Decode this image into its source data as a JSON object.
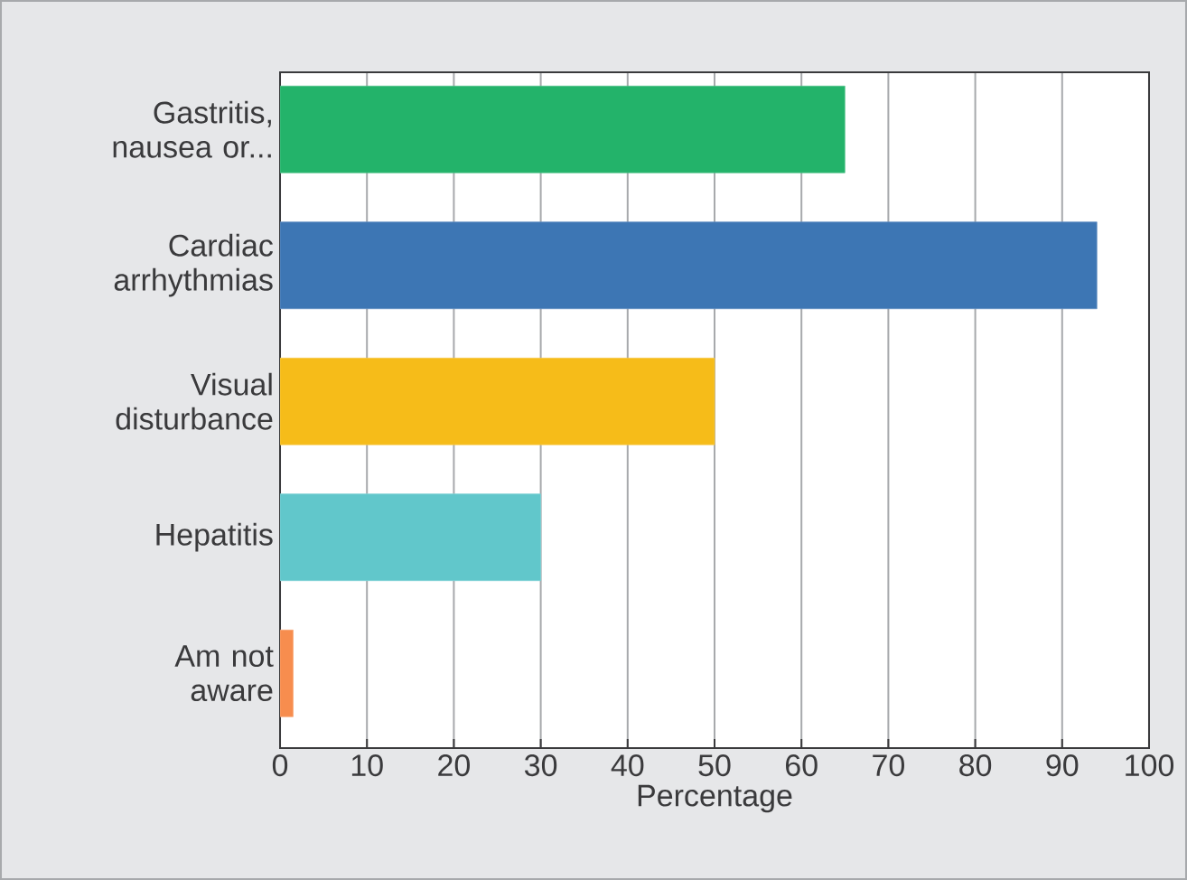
{
  "chart_data": {
    "type": "bar",
    "orientation": "horizontal",
    "xlabel": "Percentage",
    "categories": [
      "Gastritis, nausea or...",
      "Cardiac arrhythmias",
      "Visual disturbance",
      "Hepatitis",
      "Am not aware"
    ],
    "values": [
      65,
      94,
      50,
      30,
      1.5
    ],
    "colors": [
      "#23b36a",
      "#3d76b4",
      "#f6bc19",
      "#61c7cb",
      "#f78d4e"
    ],
    "xlim": [
      0,
      100
    ],
    "xticks": [
      0,
      10,
      20,
      30,
      40,
      50,
      60,
      70,
      80,
      90,
      100
    ],
    "grid": "x"
  }
}
